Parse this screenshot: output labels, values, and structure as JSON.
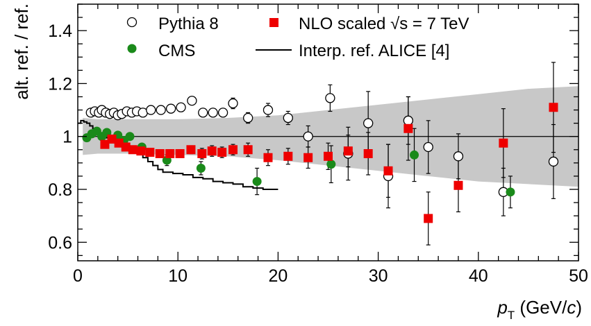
{
  "chart_data": {
    "type": "scatter",
    "xlabel_italic": "p",
    "xlabel_sub": "T",
    "xlabel_unit_pre": " (GeV/",
    "xlabel_unit_italic": "c",
    "xlabel_unit_post": ")",
    "ylabel": "alt. ref. / ref.",
    "xlim": [
      0,
      50
    ],
    "ylim": [
      0.53,
      1.5
    ],
    "x_ticks": [
      0,
      10,
      20,
      30,
      40,
      50
    ],
    "x_tick_labels": [
      "0",
      "10",
      "20",
      "30",
      "40",
      "50"
    ],
    "y_ticks": [
      0.6,
      0.8,
      1.0,
      1.2,
      1.4
    ],
    "y_tick_labels": [
      "0.6",
      "0.8",
      "1",
      "1.2",
      "1.4"
    ],
    "reference_line": 1.0,
    "colors": {
      "pythia": "#000000",
      "cms": "#1a8a1a",
      "nlo": "#ee0000",
      "alice": "#000000",
      "band": "#c8c8c8"
    },
    "legend": {
      "pythia": "Pythia 8",
      "cms": "CMS",
      "nlo_pre": "NLO scaled ",
      "nlo_sqrt": "√s",
      "nlo_post": " = 7 TeV",
      "alice": "Interp. ref. ALICE [4]"
    },
    "band": {
      "name": "NLO scaled uncertainty",
      "x": [
        0.5,
        2,
        5,
        10,
        15,
        20,
        25,
        30,
        35,
        40,
        45,
        50
      ],
      "upper": [
        1.07,
        1.065,
        1.065,
        1.065,
        1.07,
        1.08,
        1.1,
        1.12,
        1.14,
        1.16,
        1.18,
        1.19
      ],
      "lower": [
        0.93,
        0.935,
        0.935,
        0.93,
        0.925,
        0.91,
        0.89,
        0.87,
        0.85,
        0.83,
        0.82,
        0.81
      ]
    },
    "series": [
      {
        "name": "Pythia 8",
        "marker": "open-circle",
        "points": [
          [
            1.3,
            1.09,
            0.01
          ],
          [
            1.7,
            1.095,
            0.01
          ],
          [
            2.1,
            1.09,
            0.01
          ],
          [
            2.4,
            1.1,
            0.01
          ],
          [
            2.8,
            1.09,
            0.01
          ],
          [
            3.2,
            1.085,
            0.01
          ],
          [
            3.6,
            1.09,
            0.01
          ],
          [
            4.0,
            1.08,
            0.01
          ],
          [
            4.4,
            1.085,
            0.01
          ],
          [
            4.9,
            1.095,
            0.01
          ],
          [
            5.4,
            1.09,
            0.01
          ],
          [
            5.9,
            1.095,
            0.01
          ],
          [
            6.5,
            1.09,
            0.01
          ],
          [
            7.3,
            1.1,
            0.01
          ],
          [
            8.3,
            1.1,
            0.01
          ],
          [
            9.3,
            1.105,
            0.01
          ],
          [
            10.3,
            1.11,
            0.01
          ],
          [
            11.4,
            1.135,
            0.015
          ],
          [
            12.5,
            1.09,
            0.015
          ],
          [
            13.5,
            1.09,
            0.015
          ],
          [
            14.5,
            1.09,
            0.015
          ],
          [
            15.5,
            1.125,
            0.02
          ],
          [
            17.0,
            1.07,
            0.02
          ],
          [
            19.0,
            1.1,
            0.025
          ],
          [
            21.0,
            1.07,
            0.025
          ],
          [
            23.0,
            1.0,
            0.04
          ],
          [
            25.2,
            1.145,
            0.05
          ],
          [
            27.0,
            0.935,
            0.1
          ],
          [
            29.0,
            1.05,
            0.12
          ],
          [
            31.0,
            0.85,
            0.12
          ],
          [
            33.0,
            1.06,
            0.09
          ],
          [
            35.0,
            0.96,
            0.1
          ],
          [
            38.0,
            0.925,
            0.085
          ],
          [
            42.5,
            0.79,
            0.09
          ],
          [
            47.5,
            0.905,
            0.14
          ]
        ]
      },
      {
        "name": "CMS",
        "marker": "filled-circle",
        "points": [
          [
            0.9,
            0.995,
            0.0
          ],
          [
            1.4,
            1.01,
            0.0
          ],
          [
            1.9,
            1.02,
            0.0
          ],
          [
            2.4,
            1.0,
            0.0
          ],
          [
            2.9,
            1.015,
            0.0
          ],
          [
            3.4,
            0.99,
            0.0
          ],
          [
            4.0,
            1.005,
            0.0
          ],
          [
            4.6,
            0.985,
            0.0
          ],
          [
            5.2,
            1.0,
            0.0
          ],
          [
            6.4,
            0.96,
            0.0
          ],
          [
            8.9,
            0.91,
            0.02
          ],
          [
            12.3,
            0.88,
            0.025
          ],
          [
            17.9,
            0.83,
            0.05
          ],
          [
            25.3,
            0.895,
            0.07
          ],
          [
            33.6,
            0.93,
            0.1
          ],
          [
            43.2,
            0.79,
            0.06
          ]
        ]
      },
      {
        "name": "NLO scaled √s = 7 TeV",
        "marker": "filled-square",
        "points": [
          [
            2.7,
            0.97,
            0.01
          ],
          [
            3.4,
            0.99,
            0.01
          ],
          [
            4.1,
            0.975,
            0.01
          ],
          [
            4.8,
            0.96,
            0.01
          ],
          [
            5.5,
            0.95,
            0.01
          ],
          [
            6.3,
            0.945,
            0.012
          ],
          [
            7.2,
            0.94,
            0.012
          ],
          [
            8.2,
            0.935,
            0.012
          ],
          [
            9.2,
            0.935,
            0.015
          ],
          [
            10.2,
            0.935,
            0.015
          ],
          [
            11.3,
            0.95,
            0.015
          ],
          [
            12.4,
            0.935,
            0.02
          ],
          [
            13.4,
            0.945,
            0.02
          ],
          [
            14.4,
            0.94,
            0.02
          ],
          [
            15.5,
            0.95,
            0.02
          ],
          [
            17.0,
            0.95,
            0.025
          ],
          [
            19.0,
            0.92,
            0.03
          ],
          [
            21.0,
            0.925,
            0.03
          ],
          [
            23.0,
            0.92,
            0.04
          ],
          [
            25.0,
            0.925,
            0.05
          ],
          [
            27.0,
            0.945,
            0.06
          ],
          [
            29.0,
            0.935,
            0.08
          ],
          [
            31.0,
            0.87,
            0.1
          ],
          [
            33.0,
            1.03,
            0.12
          ],
          [
            35.0,
            0.69,
            0.1
          ],
          [
            38.0,
            0.815,
            0.1
          ],
          [
            42.5,
            0.975,
            0.13
          ],
          [
            47.5,
            1.11,
            0.17
          ]
        ]
      },
      {
        "name": "Interp. ref. ALICE [4]",
        "marker": "step-line",
        "points": [
          [
            0.0,
            1.05
          ],
          [
            0.3,
            1.06
          ],
          [
            0.6,
            1.055
          ],
          [
            0.9,
            1.05
          ],
          [
            1.2,
            1.04
          ],
          [
            1.5,
            1.03
          ],
          [
            1.8,
            1.02
          ],
          [
            2.1,
            1.01
          ],
          [
            2.4,
            1.0
          ],
          [
            2.8,
            0.995
          ],
          [
            3.2,
            0.99
          ],
          [
            3.6,
            0.985
          ],
          [
            4.0,
            0.975
          ],
          [
            4.5,
            0.965
          ],
          [
            5.0,
            0.955
          ],
          [
            5.5,
            0.945
          ],
          [
            6.0,
            0.935
          ],
          [
            6.5,
            0.92
          ],
          [
            7.0,
            0.905
          ],
          [
            7.5,
            0.89
          ],
          [
            8.0,
            0.875
          ],
          [
            8.5,
            0.865
          ],
          [
            9.5,
            0.86
          ],
          [
            10.5,
            0.855
          ],
          [
            11.5,
            0.845
          ],
          [
            12.5,
            0.84
          ],
          [
            13.5,
            0.83
          ],
          [
            14.5,
            0.825
          ],
          [
            15.5,
            0.82
          ],
          [
            16.5,
            0.81
          ],
          [
            17.5,
            0.805
          ],
          [
            18.5,
            0.8
          ],
          [
            20.0,
            0.8
          ]
        ]
      }
    ]
  }
}
